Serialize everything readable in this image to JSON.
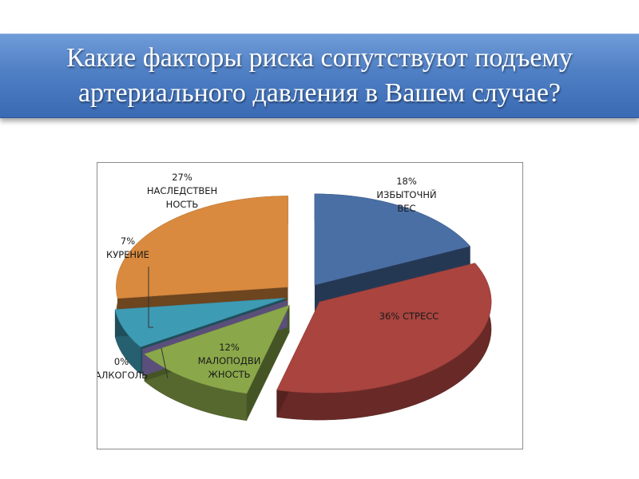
{
  "title": {
    "lines": [
      "Какие факторы риска сопутствуют подъему",
      "артериального давления в Вашем случае?"
    ]
  },
  "chart_data": {
    "type": "pie",
    "style": "3d-exploded",
    "categories": [
      "ИЗБЫТОЧНЫЙ ВЕС",
      "СТРЕСС",
      "МАЛОПОДВИЖНОСТЬ",
      "АЛКОГОЛЬ",
      "КУРЕНИЕ",
      "НАСЛЕДСТВЕННОСТЬ"
    ],
    "values": [
      18,
      36,
      12,
      0,
      7,
      27
    ],
    "colors": [
      "#4a6fa5",
      "#a9443f",
      "#8aa84a",
      "#5a4f7a",
      "#3e9bb4",
      "#d98a3e"
    ],
    "labels": [
      {
        "lines": [
          "18%",
          "ИЗБЫТОЧНЙ",
          "ВЕС"
        ]
      },
      {
        "lines": [
          "36% СТРЕСС"
        ]
      },
      {
        "lines": [
          "12%",
          "МАЛОПОДВИ",
          "ЖНОСТЬ"
        ]
      },
      {
        "lines": [
          "0%",
          "АЛКОГОЛЬ"
        ]
      },
      {
        "lines": [
          "7%",
          "КУРЕНИЕ"
        ]
      },
      {
        "lines": [
          "27%",
          "НАСЛЕДСТВЕН",
          "НОСТЬ"
        ]
      }
    ]
  }
}
